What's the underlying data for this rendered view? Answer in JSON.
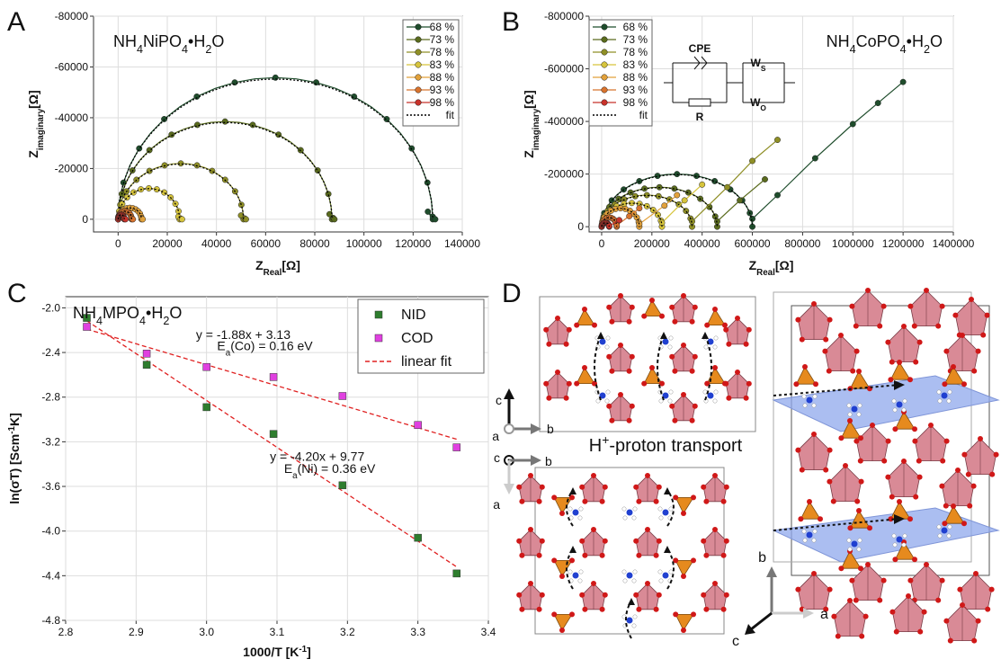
{
  "panels": {
    "A": {
      "letter": "A",
      "formula": "NH4NiPO4•H2O"
    },
    "B": {
      "letter": "B",
      "formula": "NH4CoPO4•H2O"
    },
    "C": {
      "letter": "C",
      "formula": "NH4MPO4•H2O"
    },
    "D": {
      "letter": "D",
      "caption": "H+-proton transport"
    }
  },
  "colors": {
    "68": "#1f4d2c",
    "73": "#5a6b1e",
    "78": "#8f8f26",
    "83": "#d6c43c",
    "88": "#e2a13a",
    "93": "#d8732e",
    "98": "#c8322a",
    "NID": "#2e7d2e",
    "COD": "#e040e0",
    "fit": "#e02020",
    "octa": "#d98a96",
    "tetra": "#e68a1e",
    "plane": "#8fa8ec"
  },
  "circuit": {
    "cpe": "CPE",
    "r": "R",
    "ws": "WS",
    "wo": "WO"
  },
  "crystal": {
    "axes1": [
      "c",
      "b",
      "a"
    ],
    "axes2": [
      "c",
      "b",
      "a"
    ],
    "axes3": [
      "b",
      "a",
      "c"
    ]
  },
  "chart_data": [
    {
      "id": "A",
      "type": "scatter",
      "title": "NH4NiPO4•H2O",
      "xlabel": "ZReal[Ω]",
      "ylabel": "Zimaginary[Ω]",
      "xlim": [
        -10000,
        140000
      ],
      "ylim": [
        5000,
        -80000
      ],
      "xticks": [
        0,
        20000,
        40000,
        60000,
        80000,
        100000,
        120000,
        140000
      ],
      "yticks": [
        0,
        -20000,
        -40000,
        -60000,
        -80000
      ],
      "grid": true,
      "legend_position": "top-right",
      "legend": [
        "68 %",
        "73 %",
        "78 %",
        "83 %",
        "88 %",
        "93 %",
        "98 %",
        "fit"
      ],
      "series": [
        {
          "name": "68 %",
          "x0": 0,
          "x1": 128000,
          "ymax": -55800,
          "tail": [
            [
              126000,
              -3000
            ],
            [
              128000,
              -1000
            ],
            [
              129000,
              0
            ]
          ]
        },
        {
          "name": "73 %",
          "x0": 0,
          "x1": 87000,
          "ymax": -38500,
          "tail": [
            [
              86000,
              -2000
            ],
            [
              87500,
              -500
            ],
            [
              88000,
              0
            ]
          ]
        },
        {
          "name": "78 %",
          "x0": 0,
          "x1": 51000,
          "ymax": -22000,
          "tail": [
            [
              50000,
              -1500
            ],
            [
              51500,
              -300
            ],
            [
              52000,
              0
            ]
          ]
        },
        {
          "name": "83 %",
          "x0": 0,
          "x1": 25000,
          "ymax": -12200,
          "tail": [
            [
              24500,
              -1000
            ],
            [
              25500,
              -200
            ],
            [
              26000,
              0
            ]
          ]
        },
        {
          "name": "88 %",
          "x0": 0,
          "x1": 9500,
          "ymax": -4500,
          "tail": [
            [
              9500,
              -500
            ],
            [
              10000,
              0
            ]
          ]
        },
        {
          "name": "93 %",
          "x0": 0,
          "x1": 5500,
          "ymax": -3200,
          "tail": [
            [
              5500,
              -300
            ],
            [
              6000,
              0
            ]
          ]
        },
        {
          "name": "98 %",
          "x0": 0,
          "x1": 2500,
          "ymax": -1800,
          "tail": [
            [
              2500,
              -200
            ],
            [
              3000,
              0
            ]
          ]
        }
      ]
    },
    {
      "id": "B",
      "type": "scatter",
      "title": "NH4CoPO4•H2O",
      "xlabel": "ZReal[Ω]",
      "ylabel": "Zimaginary[Ω]",
      "xlim": [
        -50000,
        1400000
      ],
      "ylim": [
        20000,
        -800000
      ],
      "xticks": [
        0,
        200000,
        400000,
        600000,
        800000,
        1000000,
        1200000,
        1400000
      ],
      "yticks": [
        0,
        -200000,
        -400000,
        -600000,
        -800000
      ],
      "grid": true,
      "legend_position": "top-left",
      "legend": [
        "68 %",
        "73 %",
        "78 %",
        "83 %",
        "88 %",
        "93 %",
        "98 %",
        "fit"
      ],
      "series": [
        {
          "name": "68 %",
          "x0": 0,
          "x1": 600000,
          "ymax": -200000,
          "tail": [
            [
              600000,
              -30000
            ],
            [
              700000,
              -120000
            ],
            [
              850000,
              -260000
            ],
            [
              1000000,
              -390000
            ],
            [
              1100000,
              -470000
            ],
            [
              1200000,
              -550000
            ]
          ]
        },
        {
          "name": "73 %",
          "x0": 0,
          "x1": 460000,
          "ymax": -150000,
          "tail": [
            [
              460000,
              -20000
            ],
            [
              550000,
              -100000
            ],
            [
              650000,
              -180000
            ]
          ]
        },
        {
          "name": "78 %",
          "x0": 0,
          "x1": 360000,
          "ymax": -120000,
          "tail": [
            [
              360000,
              -20000
            ],
            [
              500000,
              -150000
            ],
            [
              600000,
              -250000
            ],
            [
              700000,
              -330000
            ]
          ]
        },
        {
          "name": "83 %",
          "x0": 0,
          "x1": 240000,
          "ymax": -90000,
          "tail": [
            [
              240000,
              -15000
            ],
            [
              330000,
              -100000
            ],
            [
              400000,
              -160000
            ]
          ]
        },
        {
          "name": "88 %",
          "x0": 0,
          "x1": 150000,
          "ymax": -70000,
          "tail": [
            [
              150000,
              -10000
            ],
            [
              250000,
              -80000
            ],
            [
              300000,
              -120000
            ]
          ]
        },
        {
          "name": "93 %",
          "x0": 0,
          "x1": 60000,
          "ymax": -35000,
          "tail": [
            [
              60000,
              -5000
            ],
            [
              110000,
              -40000
            ],
            [
              150000,
              -70000
            ]
          ]
        },
        {
          "name": "98 %",
          "x0": 0,
          "x1": 30000,
          "ymax": -15000,
          "tail": [
            [
              30000,
              -3000
            ],
            [
              70000,
              -25000
            ]
          ]
        }
      ]
    },
    {
      "id": "C",
      "type": "scatter",
      "title": "NH4MPO4•H2O",
      "xlabel": "1000/T [K-1]",
      "ylabel": "ln(σT) [Scm-1K]",
      "xlim": [
        2.8,
        3.4
      ],
      "ylim": [
        -4.8,
        -1.9
      ],
      "xticks": [
        2.8,
        2.9,
        3.0,
        3.1,
        3.2,
        3.3,
        3.4
      ],
      "yticks": [
        -2.0,
        -2.4,
        -2.8,
        -3.2,
        -3.6,
        -4.0,
        -4.4,
        -4.8
      ],
      "grid": true,
      "legend_position": "top-right",
      "legend": [
        "NID",
        "COD",
        "linear fit"
      ],
      "series": [
        {
          "name": "NID",
          "x": [
            2.83,
            2.915,
            3.0,
            3.095,
            3.193,
            3.3,
            3.355
          ],
          "y": [
            -2.09,
            -2.51,
            -2.89,
            -3.13,
            -3.59,
            -4.06,
            -4.38
          ]
        },
        {
          "name": "COD",
          "x": [
            2.83,
            2.915,
            3.0,
            3.095,
            3.193,
            3.3,
            3.355
          ],
          "y": [
            -2.17,
            -2.41,
            -2.53,
            -2.62,
            -2.79,
            -3.05,
            -3.25
          ]
        }
      ],
      "fits": [
        {
          "label": "y = -1.88x + 3.13",
          "ea": "Ea(Co) = 0.16 eV",
          "slope": -1.88,
          "intercept": 3.13
        },
        {
          "label": "y = -4.20x + 9.77",
          "ea": "Ea(Ni) = 0.36 eV",
          "slope": -4.2,
          "intercept": 9.77
        }
      ]
    }
  ]
}
